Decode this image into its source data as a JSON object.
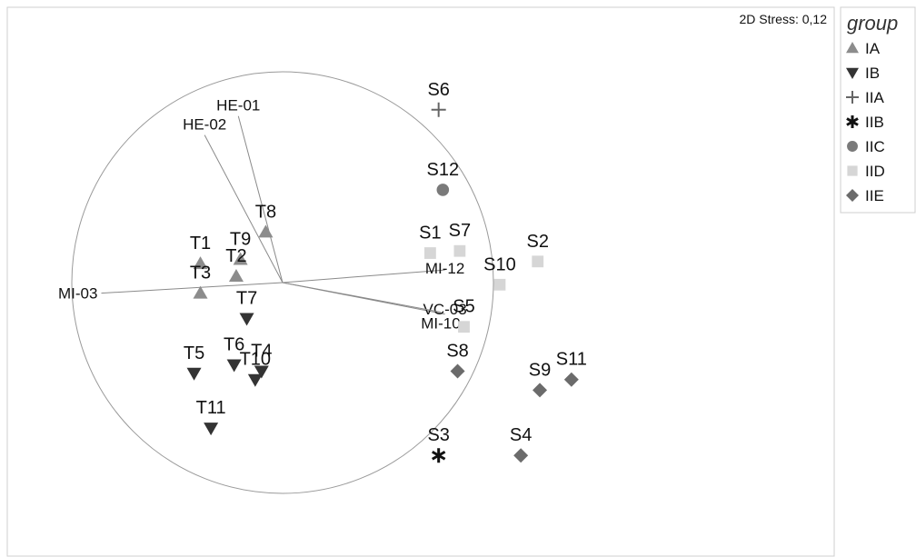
{
  "chart_data": {
    "type": "scatter",
    "title": "",
    "xlabel": "",
    "ylabel": "",
    "grid": false,
    "stress_text": "2D Stress: 0,12",
    "legend": {
      "title": "group",
      "position": "right",
      "entries": [
        {
          "group": "IA",
          "label": "IA",
          "shape": "triangle-up",
          "color": "#8c8c8c"
        },
        {
          "group": "IB",
          "label": "IB",
          "shape": "triangle-down",
          "color": "#333333"
        },
        {
          "group": "IIA",
          "label": "IIA",
          "shape": "plus",
          "color": "#666666"
        },
        {
          "group": "IIB",
          "label": "IIB",
          "shape": "asterisk",
          "color": "#111111"
        },
        {
          "group": "IIC",
          "label": "IIC",
          "shape": "circle",
          "color": "#7a7a7a"
        },
        {
          "group": "IID",
          "label": "IID",
          "shape": "square",
          "color": "#d6d6d6"
        },
        {
          "group": "IIE",
          "label": "IIE",
          "shape": "diamond",
          "color": "#6b6b6b"
        }
      ]
    },
    "points": [
      {
        "label": "S6",
        "group": "IIA",
        "x": 0.74,
        "y": 0.82
      },
      {
        "label": "S12",
        "group": "IIC",
        "x": 0.76,
        "y": 0.44
      },
      {
        "label": "S1",
        "group": "IID",
        "x": 0.7,
        "y": 0.14
      },
      {
        "label": "S7",
        "group": "IID",
        "x": 0.84,
        "y": 0.15
      },
      {
        "label": "S2",
        "group": "IID",
        "x": 1.21,
        "y": 0.1
      },
      {
        "label": "S10",
        "group": "IID",
        "x": 1.03,
        "y": -0.01
      },
      {
        "label": "S5",
        "group": "IID",
        "x": 0.86,
        "y": -0.21
      },
      {
        "label": "S8",
        "group": "IIE",
        "x": 0.83,
        "y": -0.42
      },
      {
        "label": "S9",
        "group": "IIE",
        "x": 1.22,
        "y": -0.51
      },
      {
        "label": "S11",
        "group": "IIE",
        "x": 1.37,
        "y": -0.46
      },
      {
        "label": "S3",
        "group": "IIB",
        "x": 0.74,
        "y": -0.82
      },
      {
        "label": "S4",
        "group": "IIE",
        "x": 1.13,
        "y": -0.82
      },
      {
        "label": "T8",
        "group": "IA",
        "x": -0.08,
        "y": 0.24
      },
      {
        "label": "T1",
        "group": "IA",
        "x": -0.39,
        "y": 0.09
      },
      {
        "label": "T9",
        "group": "IA",
        "x": -0.2,
        "y": 0.11
      },
      {
        "label": "T2",
        "group": "IA",
        "x": -0.22,
        "y": 0.03
      },
      {
        "label": "T3",
        "group": "IA",
        "x": -0.39,
        "y": -0.05
      },
      {
        "label": "T7",
        "group": "IB",
        "x": -0.17,
        "y": -0.17
      },
      {
        "label": "T6",
        "group": "IB",
        "x": -0.23,
        "y": -0.39
      },
      {
        "label": "T4",
        "group": "IB",
        "x": -0.1,
        "y": -0.42
      },
      {
        "label": "T10",
        "group": "IB",
        "x": -0.13,
        "y": -0.46
      },
      {
        "label": "T5",
        "group": "IB",
        "x": -0.42,
        "y": -0.43
      },
      {
        "label": "T11",
        "group": "IB",
        "x": -0.34,
        "y": -0.69
      }
    ],
    "vectors": [
      {
        "label": "HE-01",
        "x": -0.21,
        "y": 0.79
      },
      {
        "label": "HE-02",
        "x": -0.37,
        "y": 0.7
      },
      {
        "label": "MI-03",
        "x": -0.86,
        "y": -0.05
      },
      {
        "label": "MI-12",
        "x": 0.77,
        "y": 0.06
      },
      {
        "label": "VC-03",
        "x": 0.77,
        "y": -0.15
      },
      {
        "label": "MI-10",
        "x": 0.75,
        "y": -0.14
      }
    ]
  }
}
